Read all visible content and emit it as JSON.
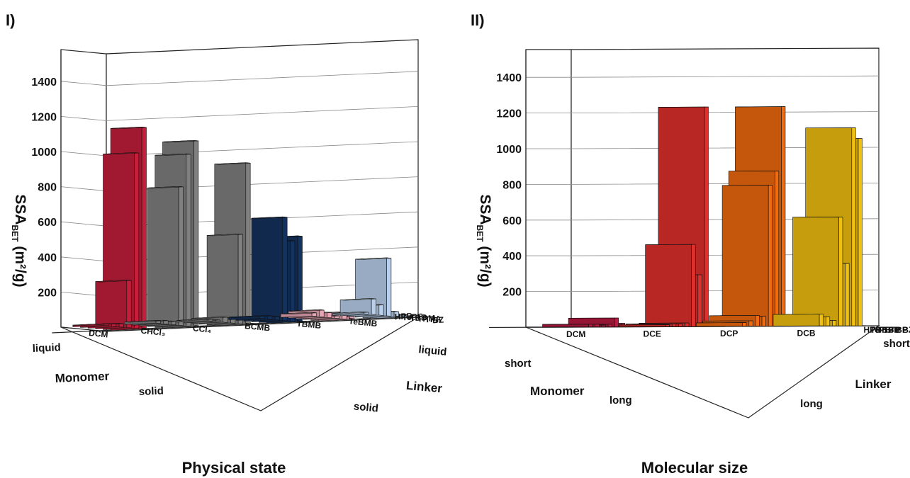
{
  "panels": [
    {
      "label": "I)",
      "bottom_title": "Physical state",
      "ylabel_main": "SSA",
      "ylabel_sub": "BET",
      "ylabel_unit": " (m²/g)",
      "monomer_axis_label": "Monomer",
      "linker_axis_label": "Linker",
      "monomer_groups": [
        {
          "label": "liquid"
        },
        {
          "label": "solid"
        }
      ],
      "linker_groups": [
        {
          "label": "liquid"
        },
        {
          "label": "solid"
        }
      ],
      "chart_data": {
        "type": "bar3d",
        "ylim": [
          0,
          1400
        ],
        "yticks": [
          200,
          400,
          600,
          800,
          1000,
          1200,
          1400
        ],
        "monomers": [
          "BZ",
          "TPA",
          "TPM",
          "TBB",
          "TePE",
          "HPB"
        ],
        "linkers": [
          "DCM",
          "CHCl3",
          "CCl4",
          "BCMB",
          "TBMB",
          "TeBMB"
        ],
        "linker_display": [
          "DCM",
          "CHCl₃",
          "CCl₄",
          "BCMB",
          "TBMB",
          "TeBMB"
        ],
        "colors": {
          "DCM": "#c41e3a",
          "CHCl3": "#808080",
          "CCl4": "#808080",
          "BCMB": "#14325e",
          "TBMB": "#e8a6b4",
          "TeBMB": "#b9d0ec"
        },
        "values": [
          [
            1150,
            1060,
            920,
            490,
            20,
            15
          ],
          [
            1000,
            980,
            510,
            460,
            40,
            30
          ],
          [
            270,
            790,
            30,
            590,
            15,
            330
          ],
          [
            20,
            20,
            30,
            20,
            30,
            60
          ],
          [
            15,
            20,
            10,
            20,
            40,
            90
          ],
          [
            10,
            15,
            10,
            15,
            20,
            10
          ]
        ]
      }
    },
    {
      "label": "II)",
      "bottom_title": "Molecular size",
      "ylabel_main": "SSA",
      "ylabel_sub": "BET",
      "ylabel_unit": " (m²/g)",
      "monomer_axis_label": "Monomer",
      "linker_axis_label": "Linker",
      "monomer_groups": [
        {
          "label": "short"
        },
        {
          "label": "long"
        }
      ],
      "linker_groups": [
        {
          "label": "short"
        },
        {
          "label": "long"
        }
      ],
      "chart_data": {
        "type": "bar3d",
        "ylim": [
          0,
          1400
        ],
        "yticks": [
          200,
          400,
          600,
          800,
          1000,
          1200,
          1400
        ],
        "monomers": [
          "BZ",
          "BP",
          "TP",
          "TPB",
          "TBB",
          "TePB",
          "HPB"
        ],
        "linkers": [
          "DCM",
          "DCE",
          "DCP",
          "DCB"
        ],
        "linker_display": [
          "DCM",
          "DCE",
          "DCP",
          "DCB"
        ],
        "colors": {
          "DCM": "#b81a40",
          "DCE": "#e0302c",
          "DCP": "#f06a10",
          "DCB": "#f0c010"
        },
        "values": [
          [
            10,
            1230,
            1230,
            1050
          ],
          [
            20,
            290,
            870,
            1110
          ],
          [
            50,
            460,
            790,
            350
          ],
          [
            15,
            20,
            55,
            610
          ],
          [
            10,
            15,
            60,
            30
          ],
          [
            15,
            15,
            30,
            50
          ],
          [
            15,
            10,
            20,
            65
          ]
        ]
      }
    }
  ]
}
